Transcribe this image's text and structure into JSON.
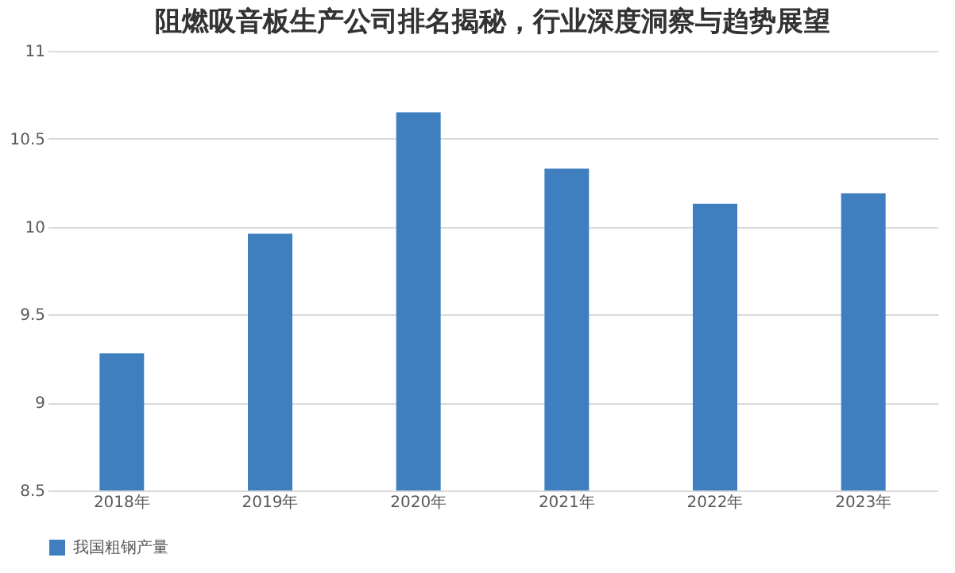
{
  "chart_data": {
    "type": "bar",
    "title": "阻燃吸音板生产公司排名揭秘，行业深度洞察与趋势展望",
    "categories": [
      "2018年",
      "2019年",
      "2020年",
      "2021年",
      "2022年",
      "2023年"
    ],
    "series": [
      {
        "name": "我国粗钢产量",
        "color": "#3f7fc0",
        "values": [
          9.28,
          9.96,
          10.65,
          10.33,
          10.13,
          10.19
        ]
      }
    ],
    "ylim": [
      8.5,
      11
    ],
    "yticks": [
      8.5,
      9,
      9.5,
      10,
      10.5,
      11
    ],
    "grid": "y",
    "legend": "bottom"
  }
}
